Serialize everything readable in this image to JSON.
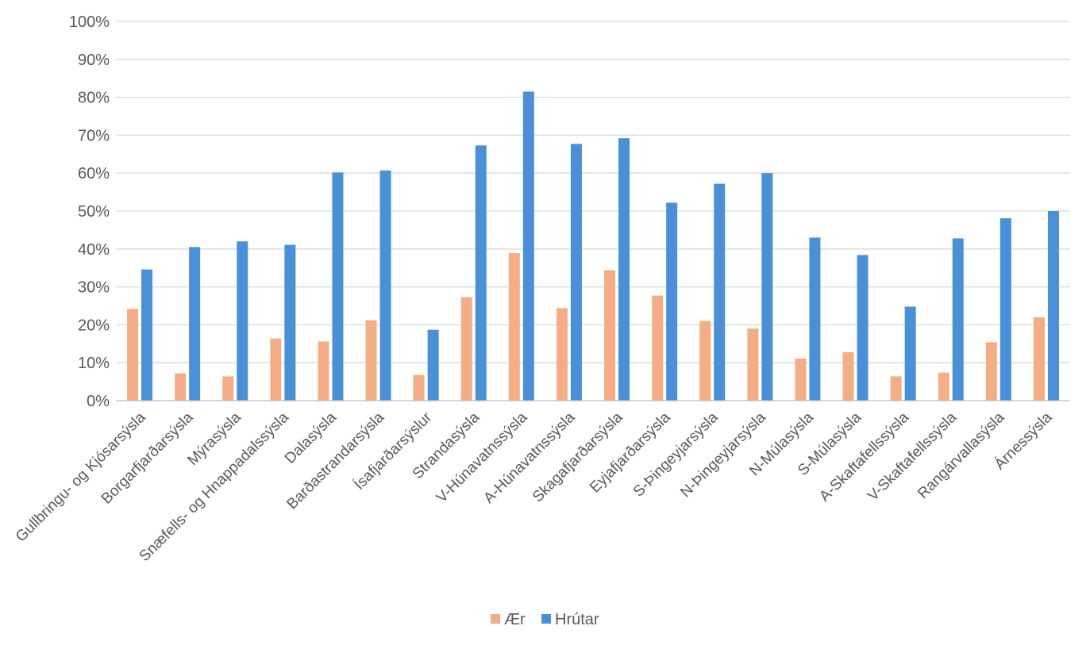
{
  "chart_data": {
    "type": "bar",
    "title": "",
    "xlabel": "",
    "ylabel": "",
    "ylim": [
      0,
      1
    ],
    "yticks": [
      "0%",
      "10%",
      "20%",
      "30%",
      "40%",
      "50%",
      "60%",
      "70%",
      "80%",
      "90%",
      "100%"
    ],
    "grid": true,
    "legend_position": "bottom",
    "categories": [
      "Gullbringu- og Kjósarsýsla",
      "Borgarfjarðarsýsla",
      "Mýrasýsla",
      "Snæfells- og Hnappadalssýsla",
      "Dalasýsla",
      "Barðastrandarsýsla",
      "Ísafjarðarsýslur",
      "Strandasýsla",
      "V-Húnavatnssýsla",
      "A-Húnavatnssýsla",
      "Skagafjarðarsýsla",
      "Eyjafjarðarsýsla",
      "S-Þingeyjarsýsla",
      "N-Þingeyjarsýsla",
      "N-Múlasýsla",
      "S-Múlasýsla",
      "A-Skaftafellssýsla",
      "V-Skaftafellssýsla",
      "Rangárvallasýsla",
      "Árnessýsla"
    ],
    "series": [
      {
        "name": "Ær",
        "color": "#f4ad84",
        "values": [
          0.242,
          0.072,
          0.064,
          0.164,
          0.156,
          0.212,
          0.068,
          0.273,
          0.389,
          0.244,
          0.344,
          0.277,
          0.21,
          0.19,
          0.111,
          0.128,
          0.064,
          0.074,
          0.154,
          0.22
        ]
      },
      {
        "name": "Hrútar",
        "color": "#4a90d9",
        "values": [
          0.346,
          0.405,
          0.42,
          0.411,
          0.602,
          0.607,
          0.187,
          0.673,
          0.815,
          0.677,
          0.692,
          0.522,
          0.572,
          0.6,
          0.43,
          0.384,
          0.248,
          0.428,
          0.481,
          0.5
        ]
      }
    ]
  }
}
